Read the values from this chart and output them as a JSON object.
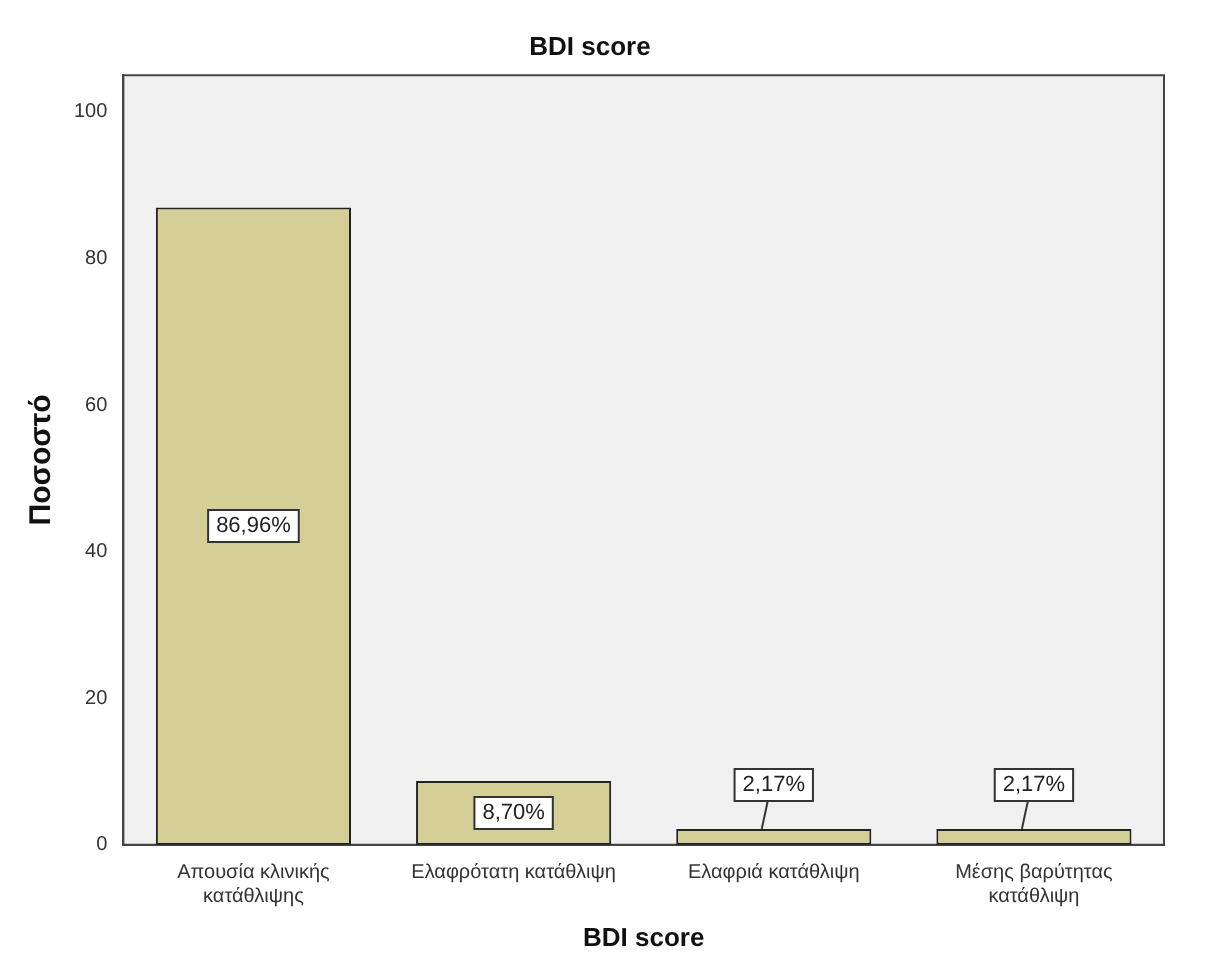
{
  "chart_data": {
    "type": "bar",
    "title": "BDI score",
    "xlabel": "BDI score",
    "ylabel": "Ποσοστό",
    "categories": [
      "Απουσία κλινικής κατάθλιψης",
      "Ελαφρότατη κατάθλιψη",
      "Ελαφριά κατάθλιψη",
      "Μέσης βαρύτητας κατάθλιψη"
    ],
    "values": [
      86.96,
      8.7,
      2.17,
      2.17
    ],
    "value_labels": [
      "86,96%",
      "8,70%",
      "2,17%",
      "2,17%"
    ],
    "color": "#d4cf96",
    "ylim": [
      0,
      105
    ],
    "yticks": [
      0,
      20,
      40,
      60,
      80,
      100
    ],
    "grid": false,
    "legend": false
  }
}
